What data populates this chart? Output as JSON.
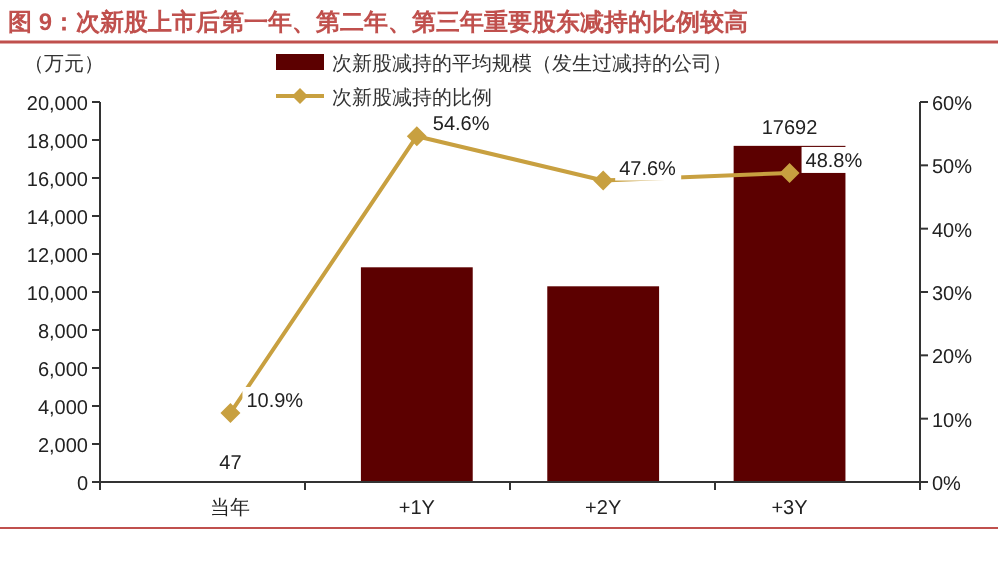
{
  "chart_data": {
    "type": "bar",
    "title": "图 9：次新股上市后第一年、第二年、第三年重要股东减持的比例较高",
    "ylabel": "（万元）",
    "categories": [
      "当年",
      "+1Y",
      "+2Y",
      "+3Y"
    ],
    "series": [
      {
        "name": "次新股减持的平均规模（发生过减持的公司）",
        "color": "#5c0000",
        "values": [
          47,
          11300,
          10300,
          17692
        ],
        "value_labels": [
          "47",
          null,
          null,
          "17692"
        ]
      },
      {
        "name": "次新股减持的比例",
        "type": "line",
        "axis": "y2",
        "color": "#c8a040",
        "marker": "diamond",
        "values": [
          10.9,
          54.6,
          47.6,
          48.8
        ],
        "value_labels": [
          "10.9%",
          "54.6%",
          "47.6%",
          "48.8%"
        ]
      }
    ],
    "ylim": [
      0,
      20000
    ],
    "yticks": [
      {
        "value": 0,
        "label": "0"
      },
      {
        "value": 2000,
        "label": "2,000"
      },
      {
        "value": 4000,
        "label": "4,000"
      },
      {
        "value": 6000,
        "label": "6,000"
      },
      {
        "value": 8000,
        "label": "8,000"
      },
      {
        "value": 10000,
        "label": "10,000"
      },
      {
        "value": 12000,
        "label": "12,000"
      },
      {
        "value": 14000,
        "label": "14,000"
      },
      {
        "value": 16000,
        "label": "16,000"
      },
      {
        "value": 18000,
        "label": "18,000"
      },
      {
        "value": 20000,
        "label": "20,000"
      }
    ],
    "y2lim": [
      0,
      60
    ],
    "y2ticks": [
      {
        "value": 0,
        "label": "0%"
      },
      {
        "value": 10,
        "label": "10%"
      },
      {
        "value": 20,
        "label": "20%"
      },
      {
        "value": 30,
        "label": "30%"
      },
      {
        "value": 40,
        "label": "40%"
      },
      {
        "value": 50,
        "label": "50%"
      },
      {
        "value": 60,
        "label": "60%"
      }
    ],
    "grid": false,
    "legend": "top"
  }
}
